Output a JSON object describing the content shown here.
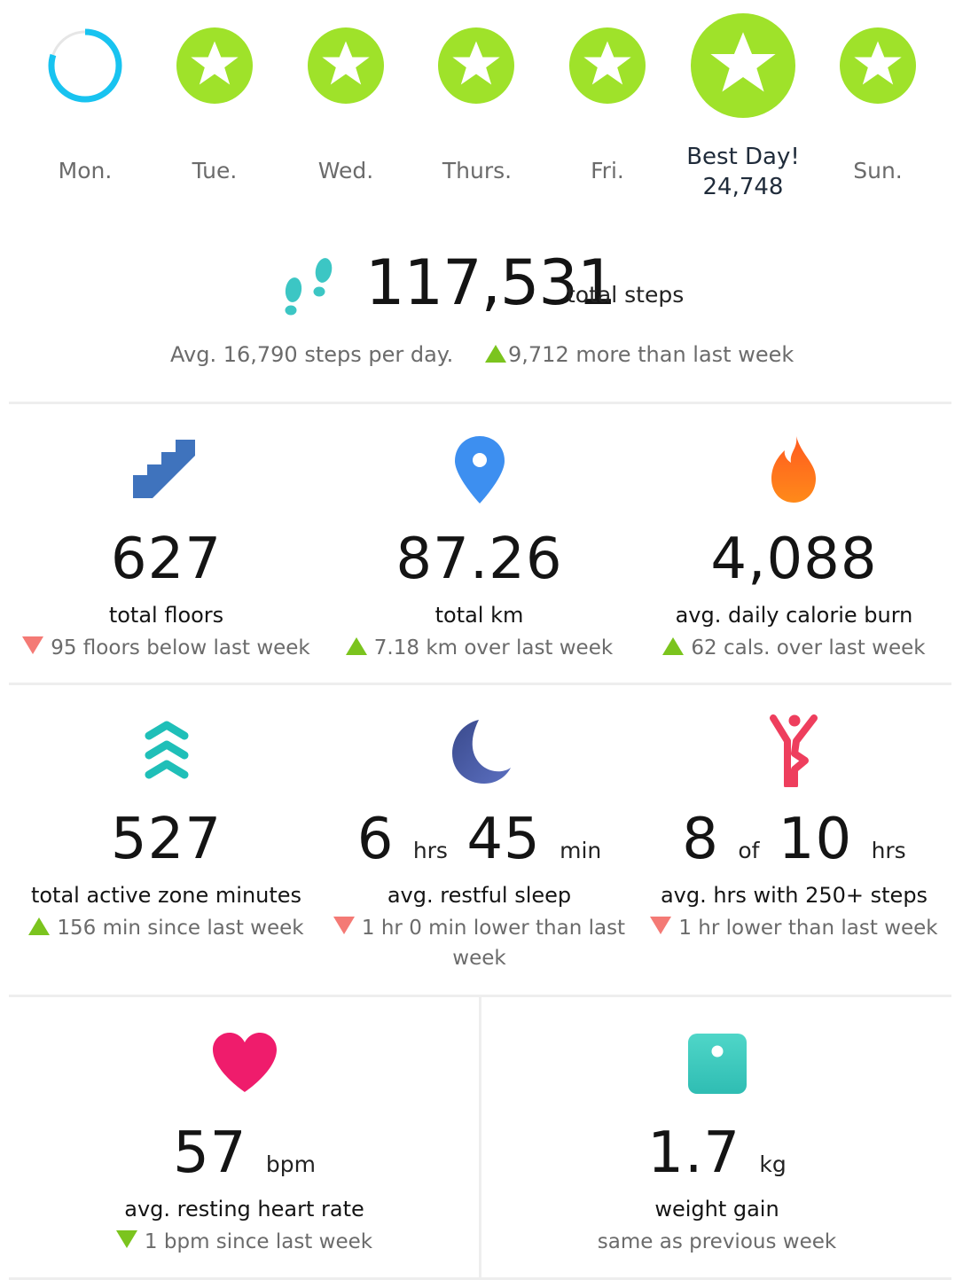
{
  "week": {
    "days": [
      "Mon.",
      "Tue.",
      "Wed.",
      "Thurs.",
      "Fri.",
      "Sun."
    ],
    "best_day": {
      "label": "Best Day!",
      "steps": "24,748"
    },
    "mon_progress": 0.8
  },
  "steps": {
    "total": "117,531",
    "unit": "total steps",
    "avg": "Avg. 16,790 steps per day.",
    "delta": "9,712 more than last week"
  },
  "metrics": {
    "floors": {
      "value": "627",
      "label": "total floors",
      "delta": "95 floors below last week",
      "trend": "down",
      "icon": "stairs-icon"
    },
    "distance": {
      "value": "87.26",
      "label": "total km",
      "delta": "7.18 km over last week",
      "trend": "up",
      "icon": "location-pin-icon"
    },
    "calories": {
      "value": "4,088",
      "label": "avg. daily calorie burn",
      "delta": "62 cals. over last week",
      "trend": "up",
      "icon": "flame-icon"
    },
    "azm": {
      "value": "527",
      "label": "total active zone minutes",
      "delta": "156 min since last week",
      "trend": "up",
      "icon": "chevrons-up-icon"
    },
    "sleep": {
      "hours": "6",
      "hours_unit": "hrs",
      "minutes": "45",
      "minutes_unit": "min",
      "label": "avg. restful sleep",
      "delta": "1 hr 0 min lower than last week",
      "trend": "down",
      "icon": "moon-icon"
    },
    "hourly": {
      "value": "8",
      "of": "of",
      "total": "10",
      "unit": "hrs",
      "label": "avg. hrs with 250+ steps",
      "delta": "1 hr lower than last week",
      "trend": "down",
      "icon": "person-stretch-icon"
    },
    "heart": {
      "value": "57",
      "unit": "bpm",
      "label": "avg. resting heart rate",
      "delta": "1 bpm since last week",
      "trend": "down-good",
      "icon": "heart-icon"
    },
    "weight": {
      "value": "1.7",
      "unit": "kg",
      "label": "weight gain",
      "delta": "same as previous week",
      "icon": "scale-icon"
    }
  },
  "colors": {
    "star_green": "#9fe22a",
    "progress_blue": "#18c3f0",
    "trend_up": "#7bc41e",
    "trend_down": "#f47a75"
  }
}
